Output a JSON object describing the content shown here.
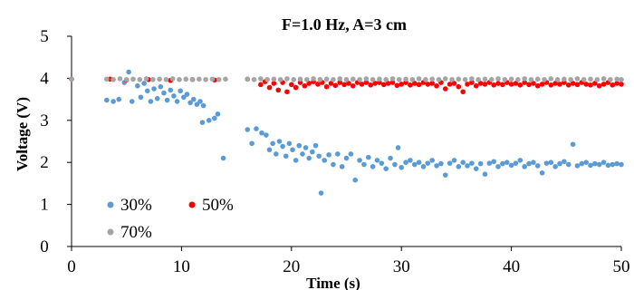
{
  "chart_data": {
    "type": "scatter",
    "title": "F=1.0 Hz, A=3 cm",
    "xlabel": "Time (s)",
    "ylabel": "Voltage (V)",
    "xlim": [
      0,
      50
    ],
    "ylim": [
      0,
      5
    ],
    "xticks": [
      0,
      10,
      20,
      30,
      40,
      50
    ],
    "yticks": [
      0,
      1,
      2,
      3,
      4,
      5
    ],
    "grid": false,
    "legend_position": "lower-left",
    "series": [
      {
        "name": "30%",
        "color": "#5b9bd5",
        "points": [
          [
            0,
            3.98
          ],
          [
            3.2,
            3.48
          ],
          [
            3.8,
            3.45
          ],
          [
            4.3,
            3.5
          ],
          [
            4.8,
            3.9
          ],
          [
            5.2,
            4.15
          ],
          [
            5.5,
            3.45
          ],
          [
            6.0,
            3.82
          ],
          [
            6.3,
            3.55
          ],
          [
            6.6,
            3.88
          ],
          [
            6.9,
            3.7
          ],
          [
            7.2,
            3.45
          ],
          [
            7.5,
            3.75
          ],
          [
            7.8,
            3.52
          ],
          [
            8.1,
            3.8
          ],
          [
            8.4,
            3.65
          ],
          [
            8.7,
            3.48
          ],
          [
            9.0,
            3.72
          ],
          [
            9.3,
            3.58
          ],
          [
            9.6,
            3.45
          ],
          [
            9.9,
            3.7
          ],
          [
            10.2,
            3.55
          ],
          [
            10.5,
            3.62
          ],
          [
            10.8,
            3.42
          ],
          [
            11.1,
            3.5
          ],
          [
            11.4,
            3.38
          ],
          [
            11.7,
            3.45
          ],
          [
            12.0,
            3.35
          ],
          [
            11.9,
            2.95
          ],
          [
            12.5,
            3.0
          ],
          [
            13.0,
            3.05
          ],
          [
            13.3,
            3.15
          ],
          [
            13.8,
            2.1
          ],
          [
            16.0,
            2.78
          ],
          [
            16.4,
            2.45
          ],
          [
            16.8,
            2.8
          ],
          [
            17.3,
            2.7
          ],
          [
            17.7,
            2.65
          ],
          [
            18.0,
            2.3
          ],
          [
            18.3,
            2.45
          ],
          [
            18.6,
            2.2
          ],
          [
            18.9,
            2.5
          ],
          [
            19.2,
            2.38
          ],
          [
            19.5,
            2.15
          ],
          [
            19.8,
            2.45
          ],
          [
            20.1,
            2.3
          ],
          [
            20.4,
            2.05
          ],
          [
            20.7,
            2.4
          ],
          [
            21.0,
            2.2
          ],
          [
            21.3,
            2.35
          ],
          [
            21.6,
            2.1
          ],
          [
            21.9,
            2.25
          ],
          [
            22.2,
            2.4
          ],
          [
            22.5,
            2.15
          ],
          [
            22.7,
            1.27
          ],
          [
            23.0,
            2.05
          ],
          [
            23.4,
            2.18
          ],
          [
            23.8,
            1.95
          ],
          [
            24.2,
            2.2
          ],
          [
            24.6,
            1.9
          ],
          [
            25.0,
            2.1
          ],
          [
            25.4,
            2.2
          ],
          [
            25.8,
            1.58
          ],
          [
            26.2,
            2.05
          ],
          [
            26.6,
            1.95
          ],
          [
            27.0,
            2.12
          ],
          [
            27.4,
            1.9
          ],
          [
            27.8,
            2.05
          ],
          [
            28.2,
            1.98
          ],
          [
            28.6,
            1.85
          ],
          [
            29.0,
            2.1
          ],
          [
            29.4,
            1.95
          ],
          [
            29.7,
            2.35
          ],
          [
            30.0,
            1.88
          ],
          [
            30.4,
            2.0
          ],
          [
            30.8,
            2.05
          ],
          [
            31.2,
            1.95
          ],
          [
            31.6,
            2.0
          ],
          [
            32.0,
            1.9
          ],
          [
            32.4,
            1.98
          ],
          [
            32.8,
            2.05
          ],
          [
            33.2,
            1.92
          ],
          [
            33.6,
            1.97
          ],
          [
            34.0,
            1.7
          ],
          [
            34.4,
            1.98
          ],
          [
            34.8,
            2.05
          ],
          [
            35.2,
            1.9
          ],
          [
            35.6,
            2.0
          ],
          [
            36.0,
            1.92
          ],
          [
            36.4,
            1.98
          ],
          [
            36.8,
            1.85
          ],
          [
            37.2,
            1.97
          ],
          [
            37.6,
            1.72
          ],
          [
            38.0,
            1.98
          ],
          [
            38.4,
            2.02
          ],
          [
            38.8,
            1.9
          ],
          [
            39.2,
            1.97
          ],
          [
            39.6,
            2.0
          ],
          [
            40.0,
            1.93
          ],
          [
            40.4,
            1.98
          ],
          [
            40.8,
            2.05
          ],
          [
            41.2,
            1.9
          ],
          [
            41.6,
            1.97
          ],
          [
            42.0,
            2.0
          ],
          [
            42.4,
            1.92
          ],
          [
            42.8,
            1.75
          ],
          [
            43.2,
            1.98
          ],
          [
            43.6,
            2.0
          ],
          [
            44.0,
            1.9
          ],
          [
            44.4,
            1.97
          ],
          [
            44.8,
            2.02
          ],
          [
            45.2,
            1.95
          ],
          [
            45.6,
            2.43
          ],
          [
            46.0,
            1.92
          ],
          [
            46.4,
            1.97
          ],
          [
            46.8,
            2.0
          ],
          [
            47.2,
            1.93
          ],
          [
            47.6,
            1.97
          ],
          [
            48.0,
            1.95
          ],
          [
            48.4,
            2.0
          ],
          [
            48.8,
            1.93
          ],
          [
            49.2,
            1.95
          ],
          [
            49.6,
            1.97
          ],
          [
            50.0,
            1.95
          ]
        ]
      },
      {
        "name": "50%",
        "color": "#ff0000",
        "points": [
          [
            0,
            3.98
          ],
          [
            3.5,
            3.98
          ],
          [
            5.0,
            3.96
          ],
          [
            7.0,
            3.97
          ],
          [
            9.0,
            3.95
          ],
          [
            11.0,
            3.97
          ],
          [
            13.0,
            3.96
          ],
          [
            16.0,
            3.98
          ],
          [
            17.2,
            3.85
          ],
          [
            17.6,
            3.92
          ],
          [
            18.0,
            3.78
          ],
          [
            18.4,
            3.88
          ],
          [
            18.8,
            3.72
          ],
          [
            19.2,
            3.9
          ],
          [
            19.6,
            3.68
          ],
          [
            20.0,
            3.85
          ],
          [
            20.4,
            3.78
          ],
          [
            20.8,
            3.9
          ],
          [
            21.2,
            3.82
          ],
          [
            21.6,
            3.88
          ],
          [
            22.0,
            3.92
          ],
          [
            22.4,
            3.86
          ],
          [
            22.8,
            3.9
          ],
          [
            23.2,
            3.8
          ],
          [
            23.6,
            3.88
          ],
          [
            24.0,
            3.83
          ],
          [
            24.4,
            3.9
          ],
          [
            24.8,
            3.85
          ],
          [
            25.2,
            3.88
          ],
          [
            25.6,
            3.82
          ],
          [
            26.0,
            3.9
          ],
          [
            26.4,
            3.86
          ],
          [
            26.8,
            3.9
          ],
          [
            27.2,
            3.84
          ],
          [
            27.6,
            3.88
          ],
          [
            28.0,
            3.9
          ],
          [
            28.4,
            3.85
          ],
          [
            28.8,
            3.88
          ],
          [
            29.2,
            3.9
          ],
          [
            29.6,
            3.83
          ],
          [
            30.0,
            3.86
          ],
          [
            30.4,
            3.9
          ],
          [
            30.8,
            3.84
          ],
          [
            31.2,
            3.88
          ],
          [
            31.6,
            3.85
          ],
          [
            32.0,
            3.9
          ],
          [
            32.4,
            3.86
          ],
          [
            32.8,
            3.88
          ],
          [
            33.2,
            3.82
          ],
          [
            33.6,
            3.9
          ],
          [
            34.0,
            3.75
          ],
          [
            34.4,
            3.86
          ],
          [
            34.8,
            3.88
          ],
          [
            35.2,
            3.8
          ],
          [
            35.6,
            3.68
          ],
          [
            36.0,
            3.86
          ],
          [
            36.4,
            3.9
          ],
          [
            36.8,
            3.82
          ],
          [
            37.2,
            3.88
          ],
          [
            37.6,
            3.86
          ],
          [
            38.0,
            3.9
          ],
          [
            38.4,
            3.84
          ],
          [
            38.8,
            3.88
          ],
          [
            39.2,
            3.85
          ],
          [
            39.6,
            3.9
          ],
          [
            40.0,
            3.86
          ],
          [
            40.4,
            3.88
          ],
          [
            40.8,
            3.84
          ],
          [
            41.2,
            3.9
          ],
          [
            41.6,
            3.85
          ],
          [
            42.0,
            3.88
          ],
          [
            42.4,
            3.82
          ],
          [
            42.8,
            3.86
          ],
          [
            43.2,
            3.9
          ],
          [
            43.6,
            3.84
          ],
          [
            44.0,
            3.88
          ],
          [
            44.4,
            3.86
          ],
          [
            44.8,
            3.9
          ],
          [
            45.2,
            3.84
          ],
          [
            45.6,
            3.88
          ],
          [
            46.0,
            3.85
          ],
          [
            46.4,
            3.9
          ],
          [
            46.8,
            3.86
          ],
          [
            47.2,
            3.84
          ],
          [
            47.6,
            3.88
          ],
          [
            48.0,
            3.82
          ],
          [
            48.4,
            3.86
          ],
          [
            48.8,
            3.9
          ],
          [
            49.2,
            3.84
          ],
          [
            49.6,
            3.88
          ],
          [
            50.0,
            3.86
          ]
        ]
      },
      {
        "name": "70%",
        "color": "#a5a5a5",
        "points": [
          [
            0,
            3.98
          ],
          [
            3.2,
            3.98
          ],
          [
            3.8,
            3.97
          ],
          [
            4.4,
            3.99
          ],
          [
            5.0,
            3.97
          ],
          [
            5.6,
            3.98
          ],
          [
            6.2,
            3.97
          ],
          [
            6.8,
            3.99
          ],
          [
            7.4,
            3.97
          ],
          [
            8.0,
            3.98
          ],
          [
            8.6,
            3.97
          ],
          [
            9.2,
            3.99
          ],
          [
            9.8,
            3.97
          ],
          [
            10.4,
            3.98
          ],
          [
            11.0,
            3.97
          ],
          [
            11.6,
            3.98
          ],
          [
            12.2,
            3.97
          ],
          [
            12.8,
            3.98
          ],
          [
            13.4,
            3.97
          ],
          [
            14.0,
            3.98
          ],
          [
            16.0,
            3.98
          ],
          [
            16.6,
            3.97
          ],
          [
            17.2,
            3.99
          ],
          [
            17.8,
            3.97
          ],
          [
            18.4,
            3.98
          ],
          [
            19.0,
            3.97
          ],
          [
            19.6,
            3.99
          ],
          [
            20.2,
            3.97
          ],
          [
            20.8,
            3.98
          ],
          [
            21.4,
            3.97
          ],
          [
            22.0,
            3.99
          ],
          [
            22.6,
            3.97
          ],
          [
            23.2,
            3.98
          ],
          [
            23.8,
            3.97
          ],
          [
            24.4,
            3.99
          ],
          [
            25.0,
            3.97
          ],
          [
            25.6,
            3.98
          ],
          [
            26.2,
            3.97
          ],
          [
            26.8,
            3.99
          ],
          [
            27.4,
            3.97
          ],
          [
            28.0,
            3.98
          ],
          [
            28.6,
            3.97
          ],
          [
            29.2,
            3.99
          ],
          [
            29.8,
            3.97
          ],
          [
            30.4,
            3.98
          ],
          [
            31.0,
            3.97
          ],
          [
            31.6,
            3.99
          ],
          [
            32.2,
            3.97
          ],
          [
            32.8,
            3.98
          ],
          [
            33.4,
            3.97
          ],
          [
            34.0,
            3.99
          ],
          [
            34.6,
            3.97
          ],
          [
            35.2,
            3.98
          ],
          [
            35.8,
            3.97
          ],
          [
            36.4,
            3.99
          ],
          [
            37.0,
            3.97
          ],
          [
            37.6,
            3.98
          ],
          [
            38.2,
            3.97
          ],
          [
            38.8,
            3.99
          ],
          [
            39.4,
            3.97
          ],
          [
            40.0,
            3.98
          ],
          [
            40.6,
            3.97
          ],
          [
            41.2,
            3.99
          ],
          [
            41.8,
            3.97
          ],
          [
            42.4,
            3.98
          ],
          [
            43.0,
            3.97
          ],
          [
            43.6,
            3.99
          ],
          [
            44.2,
            3.97
          ],
          [
            44.8,
            3.98
          ],
          [
            45.4,
            3.97
          ],
          [
            46.0,
            3.99
          ],
          [
            46.6,
            3.97
          ],
          [
            47.2,
            3.98
          ],
          [
            47.8,
            3.97
          ],
          [
            48.4,
            3.99
          ],
          [
            49.0,
            3.97
          ],
          [
            49.6,
            3.98
          ],
          [
            50.0,
            3.97
          ]
        ]
      }
    ]
  }
}
